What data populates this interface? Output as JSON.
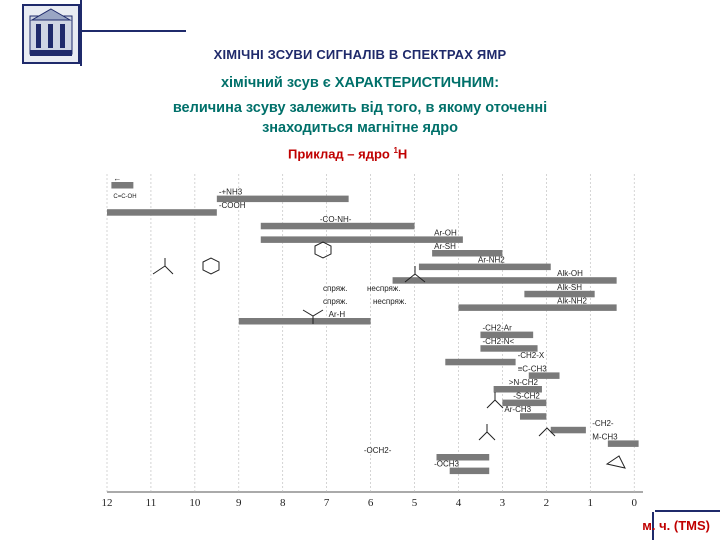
{
  "header": {
    "title": "ХІМІЧНІ ЗСУВИ СИГНАЛІВ В СПЕКТРАХ ЯМР",
    "line1": "хімічний зсув є ХАРАКТЕРИСТИЧНИМ:",
    "line2": "величина зсуву залежить від того, в якому оточенні",
    "line3": "знаходиться магнітне ядро",
    "example_prefix": "Приклад – ядро ",
    "example_mass": "1",
    "example_nucleus": "H"
  },
  "footer": {
    "units": "м. ч. (TMS)"
  },
  "colors": {
    "title": "#1f2a6b",
    "subtitle": "#00706a",
    "accent": "#c00000",
    "band": "#7a7a7a"
  },
  "icons": {
    "logo": "university-emblem-icon"
  },
  "chart_data": {
    "type": "bar",
    "orientation": "horizontal-ranges",
    "xlim": [
      12,
      -0.2
    ],
    "x_ticks": [
      "12",
      "11",
      "10",
      "9",
      "8",
      "7",
      "6",
      "5",
      "4",
      "3",
      "2",
      "1",
      "0"
    ],
    "grid": true,
    "xlabel": "",
    "ylabel": "",
    "groups": [
      {
        "label": "←",
        "sub": "C=C-OH",
        "from": 11.9,
        "to": 11.4,
        "label_x": 11.9
      },
      {
        "label": "-+NH3",
        "from": 9.5,
        "to": 6.5,
        "label_x": 9.5
      },
      {
        "label": "-COOH",
        "from": 12.0,
        "to": 9.5,
        "label_x": 9.5
      },
      {
        "label": "-CO-NH-",
        "from": 8.5,
        "to": 5.0,
        "label_x": 7.2
      },
      {
        "label": "Ar-OH",
        "from": 8.5,
        "to": 3.9,
        "label_x": 4.6
      },
      {
        "label": "Ar-SH",
        "from": 4.6,
        "to": 3.0,
        "label_x": 4.6
      },
      {
        "label": "Ar-NH2",
        "from": 4.9,
        "to": 1.9,
        "label_x": 3.6
      },
      {
        "label": "Alk-OH",
        "from": 5.5,
        "to": 0.4,
        "label_x": 1.8
      },
      {
        "label": "Alk-SH",
        "from": 2.5,
        "to": 0.9,
        "label_x": 1.8
      },
      {
        "label": "Alk-NH2",
        "from": 4.0,
        "to": 0.4,
        "label_x": 1.8
      },
      {
        "label": "Ar-H",
        "from": 9.0,
        "to": 6.0,
        "label_x": 7.0
      },
      {
        "label": "-CH2-Ar",
        "from": 3.5,
        "to": 2.3,
        "label_x": 3.5
      },
      {
        "label": "-CH2-N<",
        "from": 3.5,
        "to": 2.2,
        "label_x": 3.5
      },
      {
        "label": "-CH2-X",
        "from": 4.3,
        "to": 2.7,
        "label_x": 2.7
      },
      {
        "label": "≡C-CH3",
        "from": 2.4,
        "to": 1.7,
        "label_x": 2.7
      },
      {
        "label": ">N-CH2",
        "from": 3.2,
        "to": 2.1,
        "label_x": 2.9
      },
      {
        "label": "-S-CH2",
        "from": 3.0,
        "to": 2.0,
        "label_x": 2.8
      },
      {
        "label": "Ar-CH3",
        "from": 2.6,
        "to": 2.0,
        "label_x": 3.0
      },
      {
        "label": "-CH2-",
        "from": 1.9,
        "to": 1.1,
        "label_x": 1.0
      },
      {
        "label": "M-CH3",
        "from": 0.6,
        "to": -0.1,
        "label_x": 1.0
      },
      {
        "label": "-OCH2-",
        "from": 4.5,
        "to": 3.3,
        "label_x": 6.2
      },
      {
        "label": "-OCH3",
        "from": 4.2,
        "to": 3.3,
        "label_x": 4.6
      }
    ],
    "annotations": [
      "спряж.",
      "неспряж.",
      "спряж.",
      "неспряж."
    ]
  }
}
